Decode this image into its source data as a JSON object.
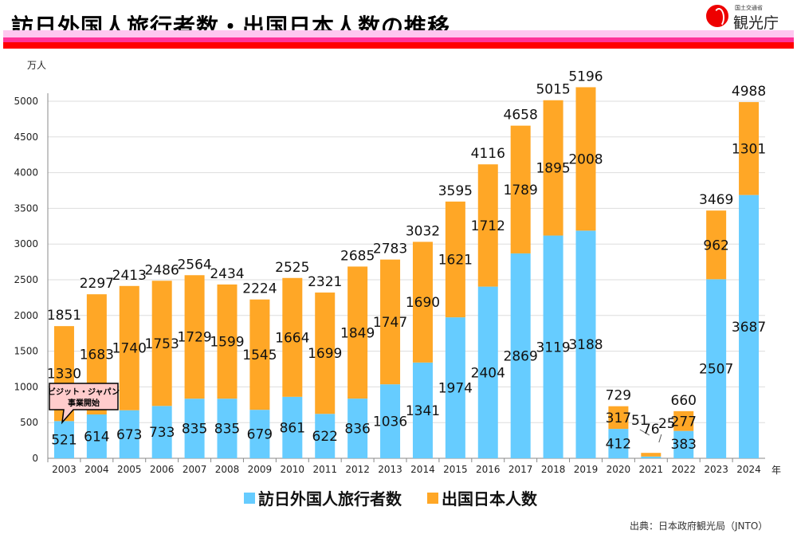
{
  "header": {
    "title": "訪日外国人旅行者数・出国日本人数の推移",
    "logo_small": "国土交通省",
    "logo_main": "観光庁"
  },
  "source": "出典：日本政府観光局（JNTO）",
  "callout": {
    "line1": "ビジット・ジャパン",
    "line2": "事業開始"
  },
  "chart_data": {
    "type": "bar",
    "stacked": true,
    "title": "",
    "ylabel": "万人",
    "xlabel": "年",
    "ylim": [
      0,
      5000
    ],
    "yticks": [
      0,
      500,
      1000,
      1500,
      2000,
      2500,
      3000,
      3500,
      4000,
      4500,
      5000
    ],
    "grid": true,
    "legend_position": "bottom",
    "categories": [
      "2003",
      "2004",
      "2005",
      "2006",
      "2007",
      "2008",
      "2009",
      "2010",
      "2011",
      "2012",
      "2013",
      "2014",
      "2015",
      "2016",
      "2017",
      "2018",
      "2019",
      "2020",
      "2021",
      "2022",
      "2023",
      "2024"
    ],
    "series": [
      {
        "name": "訪日外国人旅行者数",
        "color": "#66ccff",
        "values": [
          521,
          614,
          673,
          733,
          835,
          835,
          679,
          861,
          622,
          836,
          1036,
          1341,
          1974,
          2404,
          2869,
          3119,
          3188,
          412,
          25,
          383,
          2507,
          3687
        ]
      },
      {
        "name": "出国日本人数",
        "color": "#ffa726",
        "values": [
          1330,
          1683,
          1740,
          1753,
          1729,
          1599,
          1545,
          1664,
          1699,
          1849,
          1747,
          1690,
          1621,
          1712,
          1789,
          1895,
          2008,
          317,
          51,
          277,
          962,
          1301
        ]
      }
    ],
    "totals": [
      1851,
      2297,
      2413,
      2486,
      2564,
      2434,
      2224,
      2525,
      2321,
      2685,
      2783,
      3032,
      3595,
      4116,
      4658,
      5015,
      5196,
      729,
      76,
      660,
      3469,
      4988
    ]
  }
}
